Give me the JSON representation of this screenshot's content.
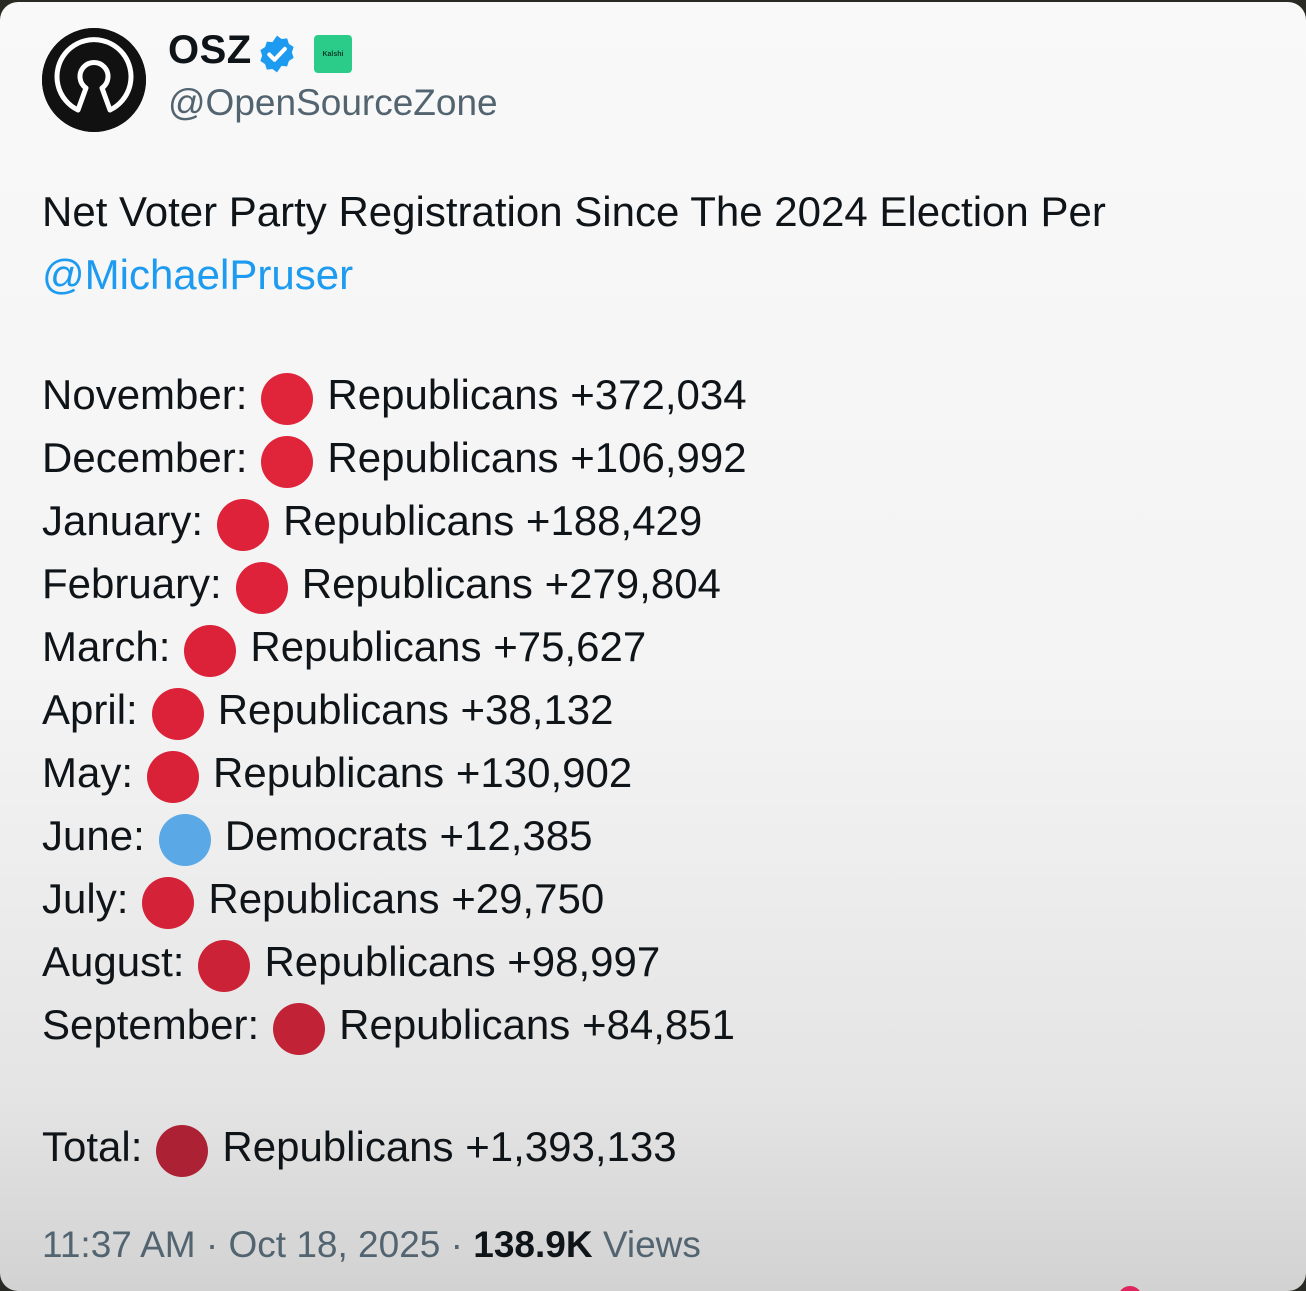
{
  "author": {
    "display_name": "OSZ",
    "handle": "@OpenSourceZone",
    "affiliate_badge_text": "Kalshi",
    "avatar_icon": "open-source-keyhole-logo",
    "verified_icon": "verified-badge-icon"
  },
  "tweet": {
    "intro": "Net Voter Party Registration Since The 2024 Election Per",
    "mention": "@MichaelPruser",
    "rows": [
      {
        "month": "November:",
        "party": "Republicans",
        "value": "+372,034",
        "dot_color": "#e0243a"
      },
      {
        "month": "December:",
        "party": "Republicans",
        "value": "+106,992",
        "dot_color": "#e0243a"
      },
      {
        "month": "January:",
        "party": "Republicans",
        "value": "+188,429",
        "dot_color": "#de2239"
      },
      {
        "month": "February:",
        "party": "Republicans",
        "value": "+279,804",
        "dot_color": "#dd2239"
      },
      {
        "month": "March:",
        "party": "Republicans",
        "value": "+75,627",
        "dot_color": "#dc2239"
      },
      {
        "month": "April:",
        "party": "Republicans",
        "value": "+38,132",
        "dot_color": "#db2238"
      },
      {
        "month": "May:",
        "party": "Republicans",
        "value": "+130,902",
        "dot_color": "#d92238"
      },
      {
        "month": "June:",
        "party": "Democrats",
        "value": "+12,385",
        "dot_color": "#5aa9e6"
      },
      {
        "month": "July:",
        "party": "Republicans",
        "value": "+29,750",
        "dot_color": "#d42238"
      },
      {
        "month": "August:",
        "party": "Republicans",
        "value": "+98,997",
        "dot_color": "#cc2237"
      },
      {
        "month": "September:",
        "party": "Republicans",
        "value": "+84,851",
        "dot_color": "#c22236"
      }
    ],
    "total": {
      "label": "Total:",
      "party": "Republicans",
      "value": "+1,393,133",
      "dot_color": "#ad2134"
    }
  },
  "meta": {
    "time": "11:37 AM",
    "separator": "·",
    "date": "Oct 18, 2025",
    "views_count": "138.9K",
    "views_label": "Views"
  }
}
